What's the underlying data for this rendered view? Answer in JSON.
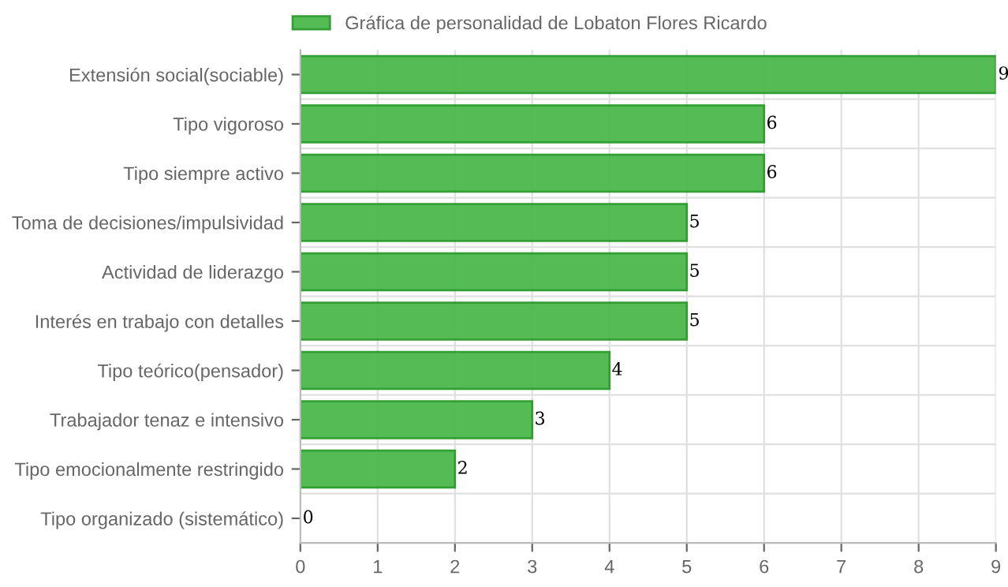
{
  "chart_data": {
    "type": "bar",
    "orientation": "horizontal",
    "categories": [
      "Extensión social(sociable)",
      "Tipo vigoroso",
      "Tipo siempre activo",
      "Toma de decisiones/impulsividad",
      "Actividad de liderazgo",
      "Interés en trabajo con detalles",
      "Tipo teórico(pensador)",
      "Trabajador tenaz e intensivo",
      "Tipo emocionalmente restringido",
      "Tipo organizado (sistemático)"
    ],
    "series": [
      {
        "name": "Gráfica de personalidad de Lobaton Flores Ricardo",
        "color": "#4cb84c",
        "values": [
          9,
          6,
          6,
          5,
          5,
          5,
          4,
          3,
          2,
          0
        ]
      }
    ],
    "xlim": [
      0,
      9
    ],
    "xticks": [
      0,
      1,
      2,
      3,
      4,
      5,
      6,
      7,
      8,
      9
    ],
    "grid": true,
    "legend": "top",
    "data_labels": true
  }
}
